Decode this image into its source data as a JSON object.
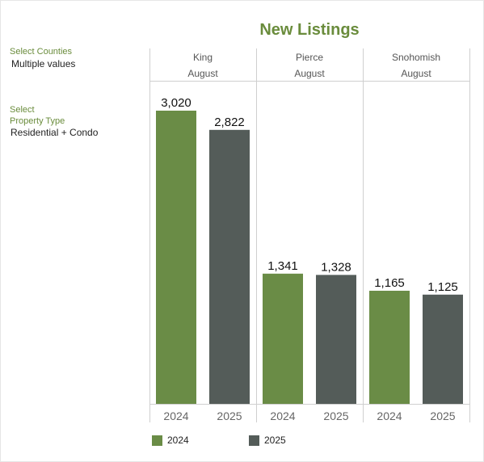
{
  "filters": {
    "counties_label": "Select Counties",
    "counties_value": "Multiple values",
    "type_label_line1": "Select",
    "type_label_line2": "Property Type",
    "type_value": "Residential + Condo"
  },
  "colors": {
    "2024": "#6a8c46",
    "2025": "#545c59"
  },
  "chart_data": {
    "type": "bar",
    "title": "New Listings",
    "panels": [
      {
        "county": "King",
        "month": "August",
        "bars": [
          {
            "year": "2024",
            "value": 3020,
            "label": "3,020"
          },
          {
            "year": "2025",
            "value": 2822,
            "label": "2,822"
          }
        ]
      },
      {
        "county": "Pierce",
        "month": "August",
        "bars": [
          {
            "year": "2024",
            "value": 1341,
            "label": "1,341"
          },
          {
            "year": "2025",
            "value": 1328,
            "label": "1,328"
          }
        ]
      },
      {
        "county": "Snohomish",
        "month": "August",
        "bars": [
          {
            "year": "2024",
            "value": 1165,
            "label": "1,165"
          },
          {
            "year": "2025",
            "value": 1125,
            "label": "1,125"
          }
        ]
      }
    ],
    "series": [
      {
        "name": "2024"
      },
      {
        "name": "2025"
      }
    ],
    "ylim": [
      0,
      3020
    ],
    "legend": "bottom-left",
    "grid": false
  }
}
